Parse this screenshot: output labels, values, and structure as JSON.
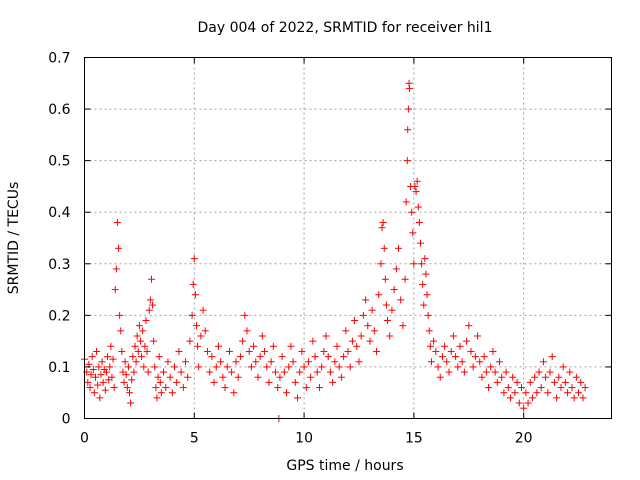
{
  "chart_data": {
    "type": "scatter",
    "title": "Day 004 of 2022, SRMTID for receiver hil1",
    "xlabel": "GPS time / hours",
    "ylabel": "SRMTID / TECUs",
    "xlim": [
      0,
      24.0
    ],
    "ylim": [
      0,
      0.7
    ],
    "xticks": [
      0,
      5,
      10,
      15,
      20
    ],
    "yticks": [
      0,
      0.1,
      0.2,
      0.3,
      0.4,
      0.5,
      0.6,
      0.7
    ],
    "xtick_labels": [
      "0",
      "5",
      "10",
      "15",
      "20"
    ],
    "ytick_labels": [
      "0",
      "0.1",
      "0.2",
      "0.3",
      "0.4",
      "0.5",
      "0.6",
      "0.7"
    ],
    "grid": true,
    "marker": "+",
    "marker_color": "#ff0000",
    "series": [
      {
        "name": "SRMTID",
        "points": [
          [
            0.0,
            0.115
          ],
          [
            0.1,
            0.09
          ],
          [
            0.15,
            0.07
          ],
          [
            0.2,
            0.105
          ],
          [
            0.25,
            0.06
          ],
          [
            0.3,
            0.085
          ],
          [
            0.35,
            0.12
          ],
          [
            0.4,
            0.095
          ],
          [
            0.45,
            0.05
          ],
          [
            0.5,
            0.08
          ],
          [
            0.55,
            0.13
          ],
          [
            0.6,
            0.065
          ],
          [
            0.65,
            0.1
          ],
          [
            0.7,
            0.04
          ],
          [
            0.75,
            0.085
          ],
          [
            0.8,
            0.11
          ],
          [
            0.85,
            0.07
          ],
          [
            0.9,
            0.095
          ],
          [
            0.95,
            0.055
          ],
          [
            1.0,
            0.09
          ],
          [
            1.05,
            0.12
          ],
          [
            1.1,
            0.075
          ],
          [
            1.15,
            0.1
          ],
          [
            1.2,
            0.14
          ],
          [
            1.25,
            0.08
          ],
          [
            1.3,
            0.115
          ],
          [
            1.35,
            0.06
          ],
          [
            1.4,
            0.25
          ],
          [
            1.45,
            0.29
          ],
          [
            1.5,
            0.38
          ],
          [
            1.55,
            0.33
          ],
          [
            1.6,
            0.2
          ],
          [
            1.65,
            0.17
          ],
          [
            1.7,
            0.13
          ],
          [
            1.75,
            0.09
          ],
          [
            1.8,
            0.07
          ],
          [
            1.85,
            0.11
          ],
          [
            1.9,
            0.085
          ],
          [
            1.95,
            0.06
          ],
          [
            2.0,
            0.1
          ],
          [
            2.05,
            0.05
          ],
          [
            2.1,
            0.03
          ],
          [
            2.15,
            0.075
          ],
          [
            2.2,
            0.12
          ],
          [
            2.25,
            0.09
          ],
          [
            2.3,
            0.14
          ],
          [
            2.35,
            0.11
          ],
          [
            2.4,
            0.16
          ],
          [
            2.45,
            0.13
          ],
          [
            2.5,
            0.18
          ],
          [
            2.55,
            0.15
          ],
          [
            2.6,
            0.12
          ],
          [
            2.65,
            0.17
          ],
          [
            2.7,
            0.1
          ],
          [
            2.75,
            0.14
          ],
          [
            2.8,
            0.19
          ],
          [
            2.85,
            0.13
          ],
          [
            2.9,
            0.09
          ],
          [
            2.95,
            0.21
          ],
          [
            3.0,
            0.23
          ],
          [
            3.05,
            0.27
          ],
          [
            3.1,
            0.22
          ],
          [
            3.15,
            0.15
          ],
          [
            3.2,
            0.1
          ],
          [
            3.25,
            0.06
          ],
          [
            3.3,
            0.04
          ],
          [
            3.35,
            0.08
          ],
          [
            3.4,
            0.12
          ],
          [
            3.45,
            0.07
          ],
          [
            3.5,
            0.05
          ],
          [
            3.6,
            0.09
          ],
          [
            3.7,
            0.06
          ],
          [
            3.8,
            0.11
          ],
          [
            3.9,
            0.08
          ],
          [
            4.0,
            0.05
          ],
          [
            4.1,
            0.1
          ],
          [
            4.2,
            0.07
          ],
          [
            4.3,
            0.13
          ],
          [
            4.4,
            0.09
          ],
          [
            4.5,
            0.06
          ],
          [
            4.6,
            0.11
          ],
          [
            4.7,
            0.08
          ],
          [
            4.8,
            0.15
          ],
          [
            4.9,
            0.2
          ],
          [
            4.95,
            0.26
          ],
          [
            5.0,
            0.31
          ],
          [
            5.05,
            0.24
          ],
          [
            5.1,
            0.18
          ],
          [
            5.15,
            0.14
          ],
          [
            5.2,
            0.1
          ],
          [
            5.3,
            0.16
          ],
          [
            5.4,
            0.21
          ],
          [
            5.5,
            0.17
          ],
          [
            5.6,
            0.13
          ],
          [
            5.7,
            0.09
          ],
          [
            5.8,
            0.12
          ],
          [
            5.9,
            0.07
          ],
          [
            6.0,
            0.1
          ],
          [
            6.1,
            0.14
          ],
          [
            6.2,
            0.11
          ],
          [
            6.3,
            0.08
          ],
          [
            6.4,
            0.06
          ],
          [
            6.5,
            0.1
          ],
          [
            6.6,
            0.13
          ],
          [
            6.7,
            0.09
          ],
          [
            6.8,
            0.05
          ],
          [
            6.9,
            0.11
          ],
          [
            7.0,
            0.08
          ],
          [
            7.1,
            0.12
          ],
          [
            7.2,
            0.15
          ],
          [
            7.3,
            0.2
          ],
          [
            7.4,
            0.17
          ],
          [
            7.5,
            0.13
          ],
          [
            7.6,
            0.1
          ],
          [
            7.7,
            0.14
          ],
          [
            7.8,
            0.11
          ],
          [
            7.9,
            0.08
          ],
          [
            8.0,
            0.12
          ],
          [
            8.1,
            0.16
          ],
          [
            8.2,
            0.13
          ],
          [
            8.3,
            0.1
          ],
          [
            8.4,
            0.07
          ],
          [
            8.5,
            0.11
          ],
          [
            8.6,
            0.14
          ],
          [
            8.7,
            0.09
          ],
          [
            8.8,
            0.06
          ],
          [
            8.85,
            0.0
          ],
          [
            8.9,
            0.08
          ],
          [
            9.0,
            0.12
          ],
          [
            9.1,
            0.09
          ],
          [
            9.2,
            0.05
          ],
          [
            9.3,
            0.1
          ],
          [
            9.4,
            0.14
          ],
          [
            9.5,
            0.11
          ],
          [
            9.6,
            0.07
          ],
          [
            9.7,
            0.04
          ],
          [
            9.8,
            0.09
          ],
          [
            9.9,
            0.13
          ],
          [
            10.0,
            0.1
          ],
          [
            10.1,
            0.06
          ],
          [
            10.2,
            0.11
          ],
          [
            10.3,
            0.08
          ],
          [
            10.4,
            0.15
          ],
          [
            10.5,
            0.12
          ],
          [
            10.6,
            0.09
          ],
          [
            10.7,
            0.06
          ],
          [
            10.8,
            0.1
          ],
          [
            10.9,
            0.13
          ],
          [
            11.0,
            0.16
          ],
          [
            11.1,
            0.12
          ],
          [
            11.2,
            0.09
          ],
          [
            11.3,
            0.07
          ],
          [
            11.4,
            0.11
          ],
          [
            11.5,
            0.14
          ],
          [
            11.6,
            0.1
          ],
          [
            11.7,
            0.08
          ],
          [
            11.8,
            0.12
          ],
          [
            11.9,
            0.17
          ],
          [
            12.0,
            0.13
          ],
          [
            12.1,
            0.1
          ],
          [
            12.2,
            0.15
          ],
          [
            12.3,
            0.19
          ],
          [
            12.4,
            0.14
          ],
          [
            12.5,
            0.11
          ],
          [
            12.6,
            0.16
          ],
          [
            12.7,
            0.2
          ],
          [
            12.8,
            0.23
          ],
          [
            12.9,
            0.18
          ],
          [
            13.0,
            0.15
          ],
          [
            13.1,
            0.21
          ],
          [
            13.2,
            0.17
          ],
          [
            13.3,
            0.13
          ],
          [
            13.4,
            0.24
          ],
          [
            13.5,
            0.3
          ],
          [
            13.55,
            0.37
          ],
          [
            13.6,
            0.38
          ],
          [
            13.65,
            0.33
          ],
          [
            13.7,
            0.27
          ],
          [
            13.75,
            0.22
          ],
          [
            13.8,
            0.19
          ],
          [
            13.9,
            0.16
          ],
          [
            14.0,
            0.21
          ],
          [
            14.1,
            0.25
          ],
          [
            14.2,
            0.29
          ],
          [
            14.3,
            0.33
          ],
          [
            14.4,
            0.23
          ],
          [
            14.5,
            0.18
          ],
          [
            14.6,
            0.27
          ],
          [
            14.65,
            0.42
          ],
          [
            14.7,
            0.5
          ],
          [
            14.72,
            0.56
          ],
          [
            14.75,
            0.6
          ],
          [
            14.78,
            0.65
          ],
          [
            14.8,
            0.64
          ],
          [
            14.85,
            0.45
          ],
          [
            14.9,
            0.4
          ],
          [
            14.95,
            0.36
          ],
          [
            15.0,
            0.3
          ],
          [
            15.05,
            0.45
          ],
          [
            15.1,
            0.44
          ],
          [
            15.15,
            0.46
          ],
          [
            15.2,
            0.41
          ],
          [
            15.25,
            0.38
          ],
          [
            15.3,
            0.34
          ],
          [
            15.35,
            0.3
          ],
          [
            15.4,
            0.26
          ],
          [
            15.45,
            0.22
          ],
          [
            15.5,
            0.31
          ],
          [
            15.55,
            0.28
          ],
          [
            15.6,
            0.24
          ],
          [
            15.65,
            0.2
          ],
          [
            15.7,
            0.17
          ],
          [
            15.75,
            0.14
          ],
          [
            15.8,
            0.11
          ],
          [
            15.9,
            0.15
          ],
          [
            16.0,
            0.13
          ],
          [
            16.1,
            0.1
          ],
          [
            16.2,
            0.08
          ],
          [
            16.3,
            0.12
          ],
          [
            16.4,
            0.14
          ],
          [
            16.5,
            0.11
          ],
          [
            16.6,
            0.09
          ],
          [
            16.7,
            0.13
          ],
          [
            16.8,
            0.16
          ],
          [
            16.9,
            0.12
          ],
          [
            17.0,
            0.1
          ],
          [
            17.1,
            0.14
          ],
          [
            17.2,
            0.11
          ],
          [
            17.3,
            0.09
          ],
          [
            17.4,
            0.15
          ],
          [
            17.5,
            0.18
          ],
          [
            17.6,
            0.13
          ],
          [
            17.7,
            0.1
          ],
          [
            17.8,
            0.12
          ],
          [
            17.9,
            0.16
          ],
          [
            18.0,
            0.11
          ],
          [
            18.1,
            0.08
          ],
          [
            18.2,
            0.12
          ],
          [
            18.3,
            0.09
          ],
          [
            18.4,
            0.06
          ],
          [
            18.5,
            0.1
          ],
          [
            18.6,
            0.13
          ],
          [
            18.7,
            0.09
          ],
          [
            18.8,
            0.07
          ],
          [
            18.9,
            0.11
          ],
          [
            19.0,
            0.08
          ],
          [
            19.1,
            0.05
          ],
          [
            19.2,
            0.09
          ],
          [
            19.3,
            0.06
          ],
          [
            19.4,
            0.04
          ],
          [
            19.5,
            0.08
          ],
          [
            19.6,
            0.05
          ],
          [
            19.7,
            0.07
          ],
          [
            19.8,
            0.03
          ],
          [
            19.9,
            0.06
          ],
          [
            20.0,
            0.02
          ],
          [
            20.1,
            0.05
          ],
          [
            20.2,
            0.03
          ],
          [
            20.3,
            0.07
          ],
          [
            20.4,
            0.04
          ],
          [
            20.5,
            0.08
          ],
          [
            20.6,
            0.05
          ],
          [
            20.7,
            0.09
          ],
          [
            20.8,
            0.06
          ],
          [
            20.9,
            0.11
          ],
          [
            21.0,
            0.08
          ],
          [
            21.1,
            0.05
          ],
          [
            21.2,
            0.09
          ],
          [
            21.3,
            0.12
          ],
          [
            21.4,
            0.07
          ],
          [
            21.5,
            0.04
          ],
          [
            21.6,
            0.08
          ],
          [
            21.7,
            0.06
          ],
          [
            21.8,
            0.1
          ],
          [
            21.9,
            0.07
          ],
          [
            22.0,
            0.05
          ],
          [
            22.1,
            0.09
          ],
          [
            22.2,
            0.06
          ],
          [
            22.3,
            0.04
          ],
          [
            22.4,
            0.08
          ],
          [
            22.5,
            0.05
          ],
          [
            22.6,
            0.07
          ],
          [
            22.7,
            0.04
          ],
          [
            22.8,
            0.06
          ]
        ]
      }
    ]
  }
}
